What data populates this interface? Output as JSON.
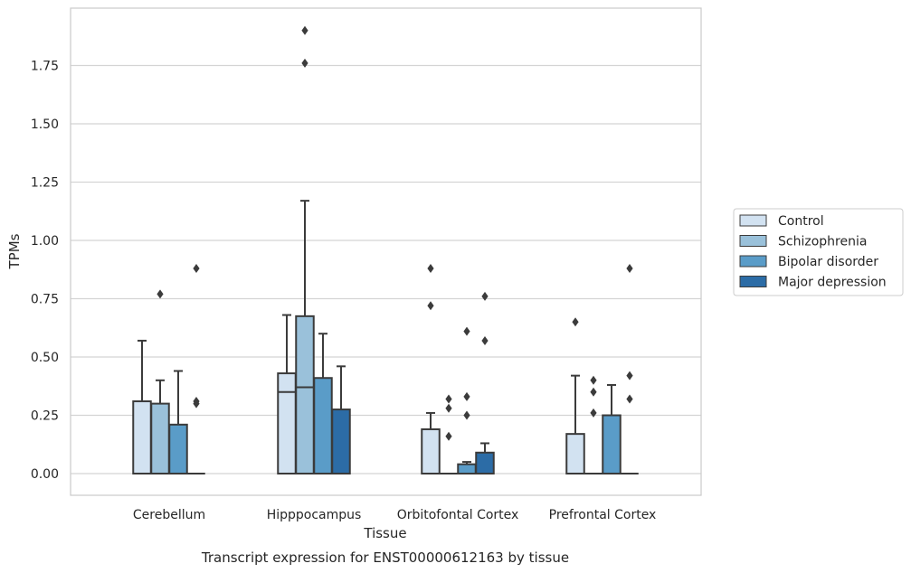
{
  "chart_data": {
    "type": "box",
    "title": "",
    "caption": "Transcript expression for ENST00000612163 by tissue",
    "xlabel": "Tissue",
    "ylabel": "TPMs",
    "ylim": [
      -0.09,
      2.0
    ],
    "yticks": [
      0.0,
      0.25,
      0.5,
      0.75,
      1.0,
      1.25,
      1.5,
      1.75
    ],
    "ytick_labels": [
      "0.00",
      "0.25",
      "0.50",
      "0.75",
      "1.00",
      "1.25",
      "1.50",
      "1.75"
    ],
    "grid": "horizontal",
    "legend_position": "right",
    "categories": [
      "Cerebellum",
      "Hipppocampus",
      "Orbitofontal Cortex",
      "Prefrontal Cortex"
    ],
    "series": [
      {
        "name": "Control",
        "color": "#d2e2f1",
        "boxes": [
          {
            "q1": 0.0,
            "median": 0.0,
            "q3": 0.31,
            "whisker_low": 0.0,
            "whisker_high": 0.57,
            "outliers": []
          },
          {
            "q1": 0.0,
            "median": 0.35,
            "q3": 0.43,
            "whisker_low": 0.0,
            "whisker_high": 0.68,
            "outliers": []
          },
          {
            "q1": 0.0,
            "median": 0.0,
            "q3": 0.19,
            "whisker_low": 0.0,
            "whisker_high": 0.26,
            "outliers": [
              0.72,
              0.88
            ]
          },
          {
            "q1": 0.0,
            "median": 0.0,
            "q3": 0.17,
            "whisker_low": 0.0,
            "whisker_high": 0.42,
            "outliers": [
              0.65
            ]
          }
        ]
      },
      {
        "name": "Schizophrenia",
        "color": "#9ac1da",
        "boxes": [
          {
            "q1": 0.0,
            "median": 0.0,
            "q3": 0.3,
            "whisker_low": 0.0,
            "whisker_high": 0.4,
            "outliers": [
              0.77
            ]
          },
          {
            "q1": 0.0,
            "median": 0.37,
            "q3": 0.675,
            "whisker_low": 0.0,
            "whisker_high": 1.17,
            "outliers": [
              1.76,
              1.9
            ]
          },
          {
            "q1": 0.0,
            "median": 0.0,
            "q3": 0.0,
            "whisker_low": 0.0,
            "whisker_high": 0.0,
            "outliers": [
              0.16,
              0.28,
              0.32
            ]
          },
          {
            "q1": 0.0,
            "median": 0.0,
            "q3": 0.0,
            "whisker_low": 0.0,
            "whisker_high": 0.0,
            "outliers": [
              0.26,
              0.35,
              0.4
            ]
          }
        ]
      },
      {
        "name": "Bipolar disorder",
        "color": "#5a9cc8",
        "boxes": [
          {
            "q1": 0.0,
            "median": 0.0,
            "q3": 0.21,
            "whisker_low": 0.0,
            "whisker_high": 0.44,
            "outliers": []
          },
          {
            "q1": 0.0,
            "median": 0.0,
            "q3": 0.41,
            "whisker_low": 0.0,
            "whisker_high": 0.6,
            "outliers": []
          },
          {
            "q1": 0.0,
            "median": 0.0,
            "q3": 0.04,
            "whisker_low": 0.0,
            "whisker_high": 0.05,
            "outliers": [
              0.25,
              0.33,
              0.61
            ]
          },
          {
            "q1": 0.0,
            "median": 0.0,
            "q3": 0.25,
            "whisker_low": 0.0,
            "whisker_high": 0.38,
            "outliers": []
          }
        ]
      },
      {
        "name": "Major depression",
        "color": "#2c6ca6",
        "boxes": [
          {
            "q1": 0.0,
            "median": 0.0,
            "q3": 0.0,
            "whisker_low": 0.0,
            "whisker_high": 0.0,
            "outliers": [
              0.3,
              0.31,
              0.88
            ]
          },
          {
            "q1": 0.0,
            "median": 0.0,
            "q3": 0.275,
            "whisker_low": 0.0,
            "whisker_high": 0.46,
            "outliers": []
          },
          {
            "q1": 0.0,
            "median": 0.0,
            "q3": 0.09,
            "whisker_low": 0.0,
            "whisker_high": 0.13,
            "outliers": [
              0.57,
              0.76
            ]
          },
          {
            "q1": 0.0,
            "median": 0.0,
            "q3": 0.0,
            "whisker_low": 0.0,
            "whisker_high": 0.0,
            "outliers": [
              0.32,
              0.42,
              0.88
            ]
          }
        ]
      }
    ]
  }
}
